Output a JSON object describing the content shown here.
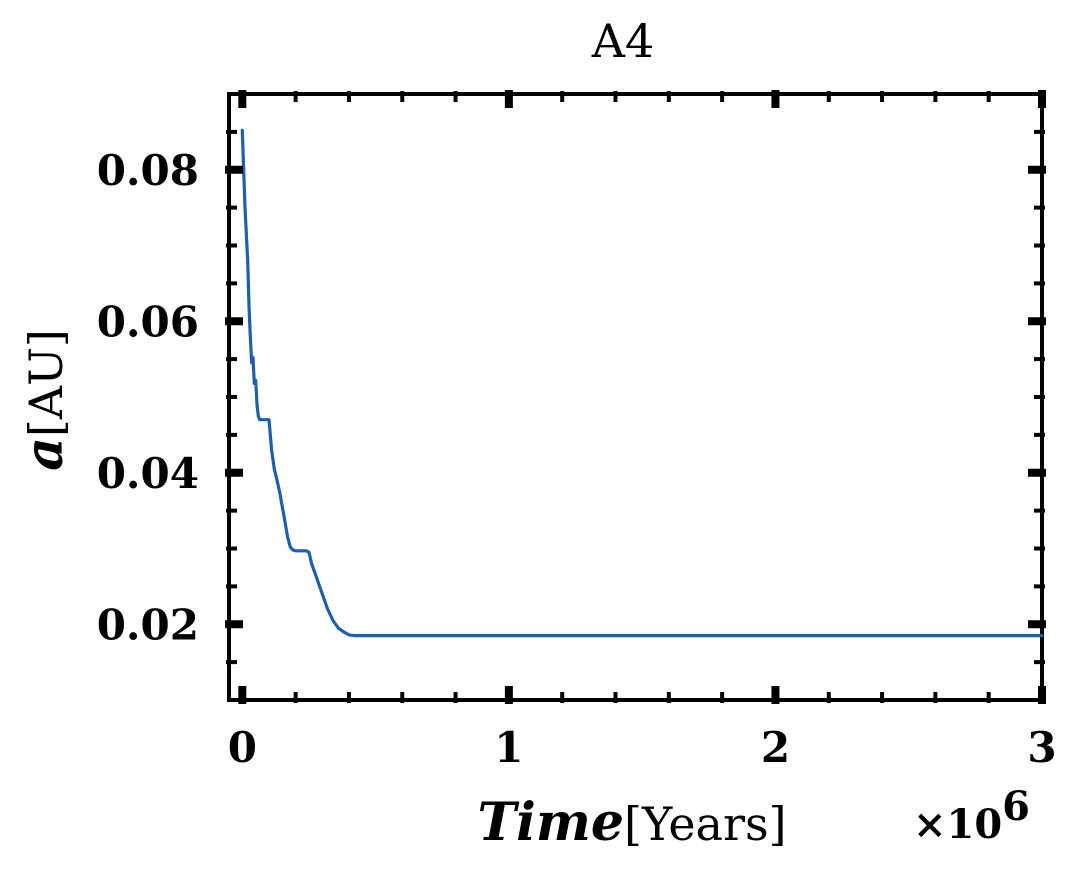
{
  "chart_data": {
    "type": "line",
    "title": "A4",
    "xlabel": {
      "var": "Time",
      "unit": "[Years]"
    },
    "ylabel": {
      "var": "a",
      "unit": "[AU]"
    },
    "x_multiplier": {
      "base": "×10",
      "exp": "6"
    },
    "xlim": [
      -0.05,
      3.0
    ],
    "ylim": [
      0.01,
      0.09
    ],
    "xticks": [
      0,
      1,
      2,
      3
    ],
    "xtick_labels": [
      "0",
      "1",
      "2",
      "3"
    ],
    "yticks": [
      0.02,
      0.04,
      0.06,
      0.08
    ],
    "ytick_labels": [
      "0.02",
      "0.04",
      "0.06",
      "0.08"
    ],
    "grid": false,
    "series": [
      {
        "color": "#1f5fa8",
        "x": [
          0.0,
          0.01,
          0.02,
          0.025,
          0.03,
          0.035,
          0.04,
          0.045,
          0.05,
          0.055,
          0.06,
          0.065,
          0.07,
          0.08,
          0.09,
          0.1,
          0.11,
          0.12,
          0.13,
          0.14,
          0.15,
          0.16,
          0.17,
          0.18,
          0.19,
          0.2,
          0.21,
          0.22,
          0.23,
          0.24,
          0.25,
          0.26,
          0.27,
          0.28,
          0.29,
          0.3,
          0.32,
          0.34,
          0.36,
          0.38,
          0.4,
          0.42,
          0.5,
          0.6,
          0.8,
          1.0,
          1.5,
          2.0,
          2.5,
          3.0
        ],
        "y": [
          0.0852,
          0.075,
          0.068,
          0.062,
          0.058,
          0.0545,
          0.0552,
          0.0518,
          0.0522,
          0.049,
          0.0475,
          0.047,
          0.047,
          0.047,
          0.047,
          0.047,
          0.043,
          0.0405,
          0.039,
          0.0375,
          0.0355,
          0.0335,
          0.0315,
          0.0302,
          0.0298,
          0.0297,
          0.0297,
          0.0297,
          0.0297,
          0.0297,
          0.0295,
          0.028,
          0.027,
          0.026,
          0.025,
          0.024,
          0.022,
          0.0205,
          0.0195,
          0.019,
          0.0186,
          0.0185,
          0.0185,
          0.0185,
          0.0185,
          0.0185,
          0.0185,
          0.0185,
          0.0185,
          0.0185
        ]
      }
    ]
  }
}
